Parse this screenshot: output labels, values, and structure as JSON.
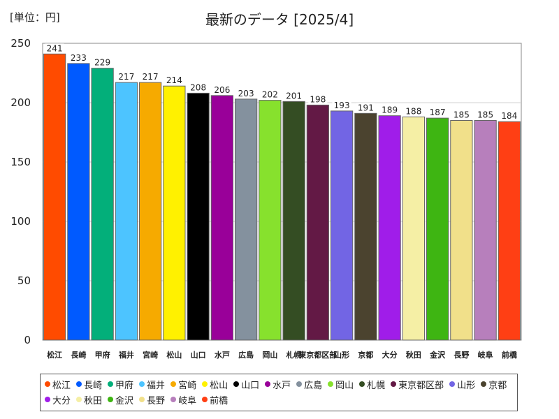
{
  "unit_label": "[単位：円]",
  "chart_data": {
    "type": "bar",
    "title": "最新のデータ [2025/4]",
    "xlabel": "",
    "ylabel": "",
    "ylim": [
      0,
      250
    ],
    "yticks": [
      0,
      50,
      100,
      150,
      200,
      250
    ],
    "grid": true,
    "legend": "bottom",
    "categories": [
      "松江",
      "長崎",
      "甲府",
      "福井",
      "宮崎",
      "松山",
      "山口",
      "水戸",
      "広島",
      "岡山",
      "札幌",
      "東京都区部",
      "山形",
      "京都",
      "大分",
      "秋田",
      "金沢",
      "長野",
      "岐阜",
      "前橋"
    ],
    "values": [
      241,
      233,
      229,
      217,
      217,
      214,
      208,
      206,
      203,
      202,
      201,
      198,
      193,
      191,
      189,
      188,
      187,
      185,
      185,
      184
    ],
    "colors": [
      "#ff4b00",
      "#005aff",
      "#03af7a",
      "#4dc4ff",
      "#f6aa00",
      "#fff100",
      "#000000",
      "#990099",
      "#84919e",
      "#87e12d",
      "#344d23",
      "#631945",
      "#7265e4",
      "#4b432f",
      "#a01de9",
      "#f5efa5",
      "#3eb512",
      "#f1e08a",
      "#b77fbc",
      "#ff3f14"
    ]
  }
}
